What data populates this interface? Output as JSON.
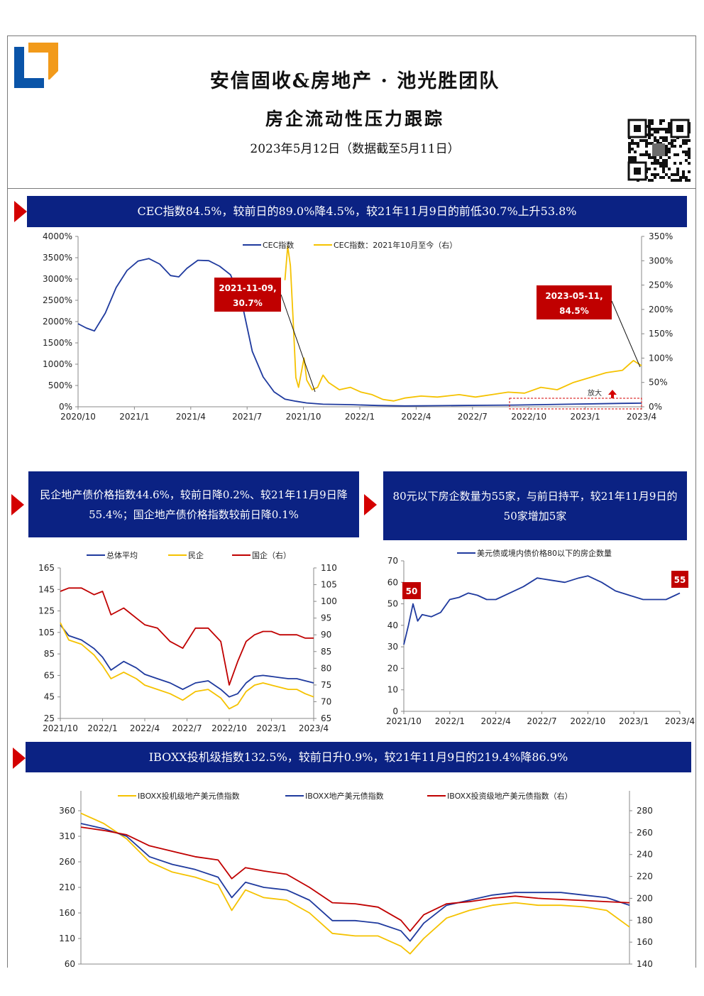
{
  "header": {
    "title": "安信固收&房地产 · 池光胜团队",
    "subtitle": "房企流动性压力跟踪",
    "date": "2023年5月12日（数据截至5月11日）"
  },
  "banners": {
    "b1": "CEC指数84.5%，较前日的89.0%降4.5%，较21年11月9日的前低30.7%上升53.8%",
    "b2": "民企地产债价格指数44.6%，较前日降0.2%、较21年11月9日降55.4%；国企地产债价格指数较前日降0.1%",
    "b3": "80元以下房企数量为55家，与前日持平，较21年11月9日的50家增加5家",
    "b4": "IBOXX投机级指数132.5%，较前日升0.9%，较21年11月9日的219.4%降86.9%"
  },
  "colors": {
    "banner": "#0b2283",
    "arrow": "#d40000",
    "navy": "#1f3a9e",
    "gold": "#f5c200",
    "red": "#c00000"
  },
  "chart_data": [
    {
      "type": "line",
      "xlabels": [
        "2020/10",
        "2021/1",
        "2021/4",
        "2021/7",
        "2021/10",
        "2022/1",
        "2022/4",
        "2022/7",
        "2022/10",
        "2023/1",
        "2023/4"
      ],
      "yleft_ticks": [
        "4000%",
        "3500%",
        "3000%",
        "2500%",
        "2000%",
        "1500%",
        "1000%",
        "500%",
        "0%"
      ],
      "yright_ticks": [
        "350%",
        "300%",
        "250%",
        "200%",
        "150%",
        "100%",
        "50%",
        "0%"
      ],
      "ylim_left": [
        0,
        4000
      ],
      "ylim_right": [
        0,
        350
      ],
      "series": [
        {
          "name": "CEC指数",
          "axis": "left",
          "color": "#1f3a9e",
          "x": [
            0,
            0.15,
            0.3,
            0.5,
            0.7,
            0.9,
            1.1,
            1.3,
            1.5,
            1.7,
            1.85,
            2.0,
            2.2,
            2.4,
            2.6,
            2.8,
            3.0,
            3.2,
            3.4,
            3.6,
            3.8,
            4.0,
            4.2,
            4.5,
            5.0,
            5.5,
            6.0,
            6.5,
            7.0,
            7.5,
            8.0,
            8.5,
            9.0,
            9.5,
            10.0,
            10.35
          ],
          "y": [
            1950,
            1850,
            1780,
            2200,
            2800,
            3200,
            3420,
            3480,
            3350,
            3080,
            3050,
            3250,
            3440,
            3430,
            3300,
            3100,
            2500,
            1300,
            700,
            350,
            180,
            130,
            90,
            60,
            50,
            30,
            20,
            25,
            30,
            35,
            40,
            50,
            60,
            70,
            80,
            84.5
          ]
        },
        {
          "name": "CEC指数：2021年10月至今（右）",
          "axis": "right",
          "color": "#f5c200",
          "x": [
            3.8,
            3.85,
            3.9,
            3.95,
            4.0,
            4.05,
            4.1,
            4.15,
            4.2,
            4.3,
            4.4,
            4.5,
            4.6,
            4.8,
            5.0,
            5.2,
            5.4,
            5.6,
            5.8,
            6.0,
            6.3,
            6.6,
            7.0,
            7.3,
            7.6,
            7.9,
            8.2,
            8.5,
            8.8,
            9.1,
            9.4,
            9.7,
            10.0,
            10.2,
            10.35
          ],
          "y": [
            260,
            330,
            290,
            180,
            60,
            40,
            70,
            100,
            55,
            35,
            40,
            65,
            50,
            35,
            40,
            30,
            25,
            15,
            12,
            18,
            22,
            20,
            25,
            20,
            25,
            30,
            28,
            40,
            35,
            50,
            60,
            70,
            75,
            95,
            84.5
          ]
        }
      ],
      "annotations": [
        {
          "text": "2021-11-09,\n30.7%"
        },
        {
          "text": "2023-05-11,\n84.5%"
        },
        {
          "text": "放大"
        }
      ]
    },
    {
      "type": "line",
      "xlabels": [
        "2021/10",
        "2022/1",
        "2022/4",
        "2022/7",
        "2022/10",
        "2023/1",
        "2023/4"
      ],
      "yleft_ticks": [
        "165",
        "145",
        "125",
        "105",
        "85",
        "65",
        "45",
        "25"
      ],
      "yright_ticks": [
        "110",
        "105",
        "100",
        "95",
        "90",
        "85",
        "80",
        "75",
        "70",
        "65"
      ],
      "ylim_left": [
        25,
        165
      ],
      "ylim_right": [
        65,
        110
      ],
      "series": [
        {
          "name": "总体平均",
          "axis": "left",
          "color": "#1f3a9e",
          "x": [
            0,
            0.2,
            0.5,
            0.8,
            1.0,
            1.2,
            1.5,
            1.8,
            2.0,
            2.3,
            2.6,
            2.9,
            3.2,
            3.5,
            3.8,
            4.0,
            4.2,
            4.4,
            4.6,
            4.8,
            5.0,
            5.2,
            5.4,
            5.6,
            5.8,
            6.0
          ],
          "y": [
            112,
            102,
            98,
            90,
            82,
            70,
            78,
            72,
            66,
            62,
            58,
            52,
            58,
            60,
            52,
            45,
            48,
            58,
            64,
            65,
            64,
            63,
            62,
            62,
            60,
            58
          ]
        },
        {
          "name": "民企",
          "axis": "left",
          "color": "#f5c200",
          "x": [
            0,
            0.2,
            0.5,
            0.8,
            1.0,
            1.2,
            1.5,
            1.8,
            2.0,
            2.3,
            2.6,
            2.9,
            3.2,
            3.5,
            3.8,
            4.0,
            4.2,
            4.4,
            4.6,
            4.8,
            5.0,
            5.2,
            5.4,
            5.6,
            5.8,
            6.0
          ],
          "y": [
            114,
            98,
            94,
            84,
            74,
            62,
            68,
            62,
            56,
            52,
            48,
            42,
            50,
            52,
            44,
            34,
            38,
            50,
            56,
            58,
            56,
            54,
            52,
            52,
            48,
            45
          ]
        },
        {
          "name": "国企（右）",
          "axis": "right",
          "color": "#c00000",
          "x": [
            0,
            0.2,
            0.5,
            0.8,
            1.0,
            1.2,
            1.5,
            1.8,
            2.0,
            2.3,
            2.6,
            2.9,
            3.2,
            3.5,
            3.8,
            4.0,
            4.2,
            4.4,
            4.6,
            4.8,
            5.0,
            5.2,
            5.4,
            5.6,
            5.8,
            6.0
          ],
          "y": [
            103,
            104,
            104,
            102,
            103,
            96,
            98,
            95,
            93,
            92,
            88,
            86,
            92,
            92,
            88,
            75,
            82,
            88,
            90,
            91,
            91,
            90,
            90,
            90,
            89,
            89
          ]
        }
      ]
    },
    {
      "type": "line",
      "xlabels": [
        "2021/10",
        "2022/1",
        "2022/4",
        "2022/7",
        "2022/10",
        "2023/1",
        "2023/4"
      ],
      "y_ticks": [
        "70",
        "60",
        "50",
        "40",
        "30",
        "20",
        "10",
        "0"
      ],
      "ylim": [
        0,
        70
      ],
      "series": [
        {
          "name": "美元债或境内债价格80以下的房企数量",
          "color": "#1f3a9e",
          "x": [
            0,
            0.1,
            0.2,
            0.3,
            0.4,
            0.6,
            0.8,
            1.0,
            1.2,
            1.4,
            1.6,
            1.8,
            2.0,
            2.3,
            2.6,
            2.9,
            3.2,
            3.5,
            3.8,
            4.0,
            4.3,
            4.6,
            4.9,
            5.2,
            5.5,
            5.7,
            5.9,
            6.0
          ],
          "y": [
            31,
            40,
            50,
            42,
            45,
            44,
            46,
            52,
            53,
            55,
            54,
            52,
            52,
            55,
            58,
            62,
            61,
            60,
            62,
            63,
            60,
            56,
            54,
            52,
            52,
            52,
            54,
            55
          ]
        }
      ],
      "annotations": [
        {
          "text": "50"
        },
        {
          "text": "55"
        }
      ]
    },
    {
      "type": "line",
      "xlabels": [],
      "yleft_ticks": [
        "360",
        "310",
        "260",
        "210",
        "160",
        "110",
        "60"
      ],
      "yright_ticks": [
        "280",
        "260",
        "240",
        "220",
        "200",
        "180",
        "160",
        "140"
      ],
      "ylim_left": [
        60,
        360
      ],
      "ylim_right": [
        140,
        280
      ],
      "series": [
        {
          "name": "IBOXX投机级地产美元债指数",
          "axis": "left",
          "color": "#f5c200",
          "x": [
            0,
            0.5,
            1.0,
            1.5,
            2.0,
            2.5,
            3.0,
            3.3,
            3.6,
            4.0,
            4.5,
            5.0,
            5.5,
            6.0,
            6.5,
            7.0,
            7.2,
            7.5,
            8.0,
            8.5,
            9.0,
            9.5,
            10.0,
            10.5,
            11.0,
            11.5,
            12.0
          ],
          "y": [
            355,
            335,
            305,
            260,
            240,
            230,
            215,
            165,
            205,
            190,
            185,
            160,
            120,
            115,
            115,
            95,
            80,
            110,
            150,
            165,
            175,
            180,
            175,
            175,
            172,
            165,
            132.5
          ]
        },
        {
          "name": "IBOXX地产美元债指数",
          "axis": "left",
          "color": "#1f3a9e",
          "x": [
            0,
            0.5,
            1.0,
            1.5,
            2.0,
            2.5,
            3.0,
            3.3,
            3.6,
            4.0,
            4.5,
            5.0,
            5.5,
            6.0,
            6.5,
            7.0,
            7.2,
            7.5,
            8.0,
            8.5,
            9.0,
            9.5,
            10.0,
            10.5,
            11.0,
            11.5,
            12.0
          ],
          "y": [
            335,
            325,
            310,
            270,
            255,
            245,
            230,
            190,
            220,
            210,
            205,
            185,
            145,
            145,
            140,
            125,
            105,
            140,
            175,
            185,
            195,
            200,
            200,
            200,
            195,
            190,
            175
          ]
        },
        {
          "name": "IBOXX投资级地产美元债指数（右）",
          "axis": "right",
          "color": "#c00000",
          "x": [
            0,
            0.5,
            1.0,
            1.5,
            2.0,
            2.5,
            3.0,
            3.3,
            3.6,
            4.0,
            4.5,
            5.0,
            5.5,
            6.0,
            6.5,
            7.0,
            7.2,
            7.5,
            8.0,
            8.5,
            9.0,
            9.5,
            10.0,
            10.5,
            11.0,
            11.5,
            12.0
          ],
          "y": [
            265,
            262,
            258,
            248,
            243,
            238,
            235,
            218,
            228,
            225,
            222,
            210,
            196,
            195,
            192,
            180,
            170,
            185,
            195,
            197,
            200,
            202,
            200,
            199,
            198,
            197,
            196
          ]
        }
      ]
    }
  ]
}
